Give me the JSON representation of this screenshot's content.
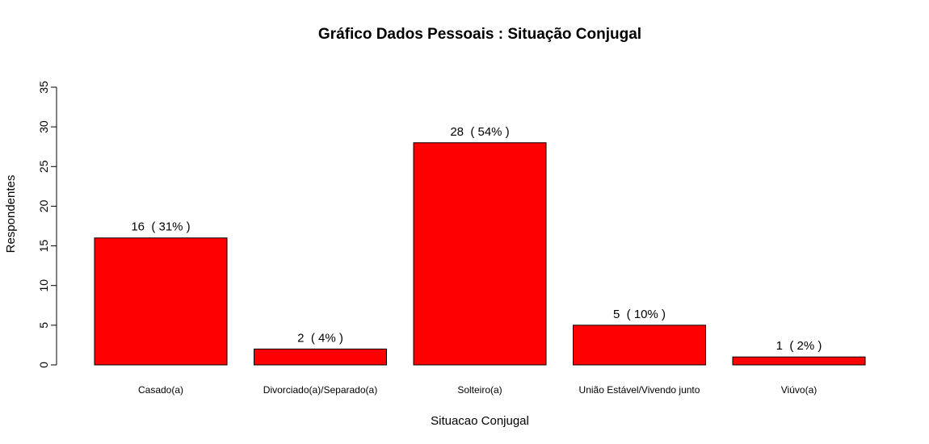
{
  "chart_data": {
    "type": "bar",
    "title": "Gráfico Dados Pessoais : Situação Conjugal",
    "xlabel": "Situacao Conjugal",
    "ylabel": "Respondentes",
    "categories": [
      "Casado(a)",
      "Divorciado(a)/Separado(a)",
      "Solteiro(a)",
      "União Estável/Vivendo junto",
      "Viúvo(a)"
    ],
    "values": [
      16,
      2,
      28,
      5,
      1
    ],
    "data_labels": [
      "16  ( 31% )",
      "2  ( 4% )",
      "28  ( 54% )",
      "5  ( 10% )",
      "1  ( 2% )"
    ],
    "ylim": [
      0,
      35
    ],
    "yticks": [
      0,
      5,
      10,
      15,
      20,
      25,
      30,
      35
    ],
    "bar_color": "#ff0000",
    "grid": false,
    "legend": "none"
  }
}
